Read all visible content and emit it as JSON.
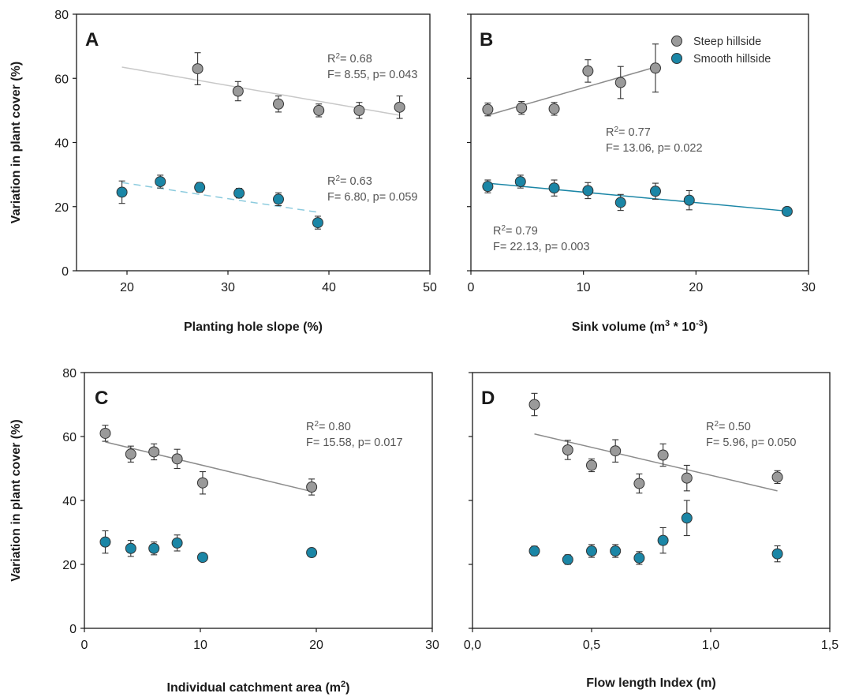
{
  "chart_data": [
    {
      "type": "scatter",
      "panel": "A",
      "xlabel": "Planting hole slope (%)",
      "ylabel": "Variation in plant cover (%)",
      "xlim": [
        15,
        50
      ],
      "ylim": [
        0,
        80
      ],
      "x_ticks": [
        "20",
        "30",
        "40",
        "50"
      ],
      "y_ticks": [
        "0",
        "20",
        "40",
        "60",
        "80"
      ],
      "series": [
        {
          "name": "Steep hillside",
          "color": "#9a9a9a",
          "points": [
            {
              "x": 27,
              "y": 63,
              "err": 5
            },
            {
              "x": 31,
              "y": 56,
              "err": 3
            },
            {
              "x": 35,
              "y": 52,
              "err": 2.5
            },
            {
              "x": 39,
              "y": 50,
              "err": 2
            },
            {
              "x": 43,
              "y": 50,
              "err": 2.5
            },
            {
              "x": 47,
              "y": 51,
              "err": 3.5
            }
          ],
          "fit": {
            "x": [
              19.5,
              47
            ],
            "y": [
              63.5,
              48.5
            ],
            "style": "solid",
            "color": "#c8c8c8"
          },
          "annotation": {
            "r2_prefix": "R",
            "r2_sup": "2",
            "r2_rest": "= 0.68",
            "stats": "F= 8.55,  p= 0.043"
          }
        },
        {
          "name": "Smooth hillside",
          "color": "#1b86a6",
          "points": [
            {
              "x": 19.5,
              "y": 24.5,
              "err": 3.5
            },
            {
              "x": 23.3,
              "y": 27.8,
              "err": 2
            },
            {
              "x": 27.2,
              "y": 26,
              "err": 1.5
            },
            {
              "x": 31.1,
              "y": 24.2,
              "err": 1.5
            },
            {
              "x": 35,
              "y": 22.3,
              "err": 2
            },
            {
              "x": 38.9,
              "y": 15,
              "err": 2
            }
          ],
          "fit": {
            "x": [
              19.5,
              39
            ],
            "y": [
              27.5,
              18.2
            ],
            "style": "dashed",
            "color": "#8ccbde"
          },
          "annotation": {
            "r2_prefix": "R",
            "r2_sup": "2",
            "r2_rest": "= 0.63",
            "stats": "F= 6.80,  p= 0.059"
          }
        }
      ]
    },
    {
      "type": "scatter",
      "panel": "B",
      "xlabel_main": "Sink volume (m",
      "xlabel_sup1": "3",
      "xlabel_mid": " * 10",
      "xlabel_sup2": "-3",
      "xlabel_end": ")",
      "xlim": [
        0,
        30
      ],
      "ylim": [
        0,
        80
      ],
      "x_ticks": [
        "0",
        "10",
        "20",
        "30"
      ],
      "legend": {
        "position": "top-right",
        "items": [
          {
            "label": "Steep hillside",
            "color": "#9a9a9a"
          },
          {
            "label": "Smooth hillside",
            "color": "#1b86a6"
          }
        ]
      },
      "series": [
        {
          "name": "Steep hillside",
          "color": "#9a9a9a",
          "points": [
            {
              "x": 1.5,
              "y": 50.3,
              "err": 2
            },
            {
              "x": 4.5,
              "y": 50.8,
              "err": 2
            },
            {
              "x": 7.4,
              "y": 50.5,
              "err": 2
            },
            {
              "x": 10.4,
              "y": 62.3,
              "err": 3.5
            },
            {
              "x": 13.3,
              "y": 58.7,
              "err": 5
            },
            {
              "x": 16.4,
              "y": 63.2,
              "err": 7.5
            }
          ],
          "fit": {
            "x": [
              1.5,
              16.4
            ],
            "y": [
              48.5,
              63.5
            ],
            "style": "solid",
            "color": "#8c8c8c"
          },
          "annotation": {
            "r2_prefix": "R",
            "r2_sup": "2",
            "r2_rest": "= 0.77",
            "stats": "F= 13.06,  p= 0.022"
          }
        },
        {
          "name": "Smooth hillside",
          "color": "#1b86a6",
          "points": [
            {
              "x": 1.5,
              "y": 26.3,
              "err": 2
            },
            {
              "x": 4.4,
              "y": 27.8,
              "err": 2
            },
            {
              "x": 7.4,
              "y": 25.8,
              "err": 2.5
            },
            {
              "x": 10.4,
              "y": 25,
              "err": 2.5
            },
            {
              "x": 13.3,
              "y": 21.3,
              "err": 2.5
            },
            {
              "x": 16.4,
              "y": 24.8,
              "err": 2.5
            },
            {
              "x": 19.4,
              "y": 22,
              "err": 3
            },
            {
              "x": 28.1,
              "y": 18.5,
              "err": 0.5
            }
          ],
          "fit": {
            "x": [
              1.5,
              28.1
            ],
            "y": [
              27.3,
              18.6
            ],
            "style": "solid",
            "color": "#1b86a6"
          },
          "annotation": {
            "r2_prefix": "R",
            "r2_sup": "2",
            "r2_rest": "= 0.79",
            "stats": "F= 22.13,  p= 0.003"
          }
        }
      ]
    },
    {
      "type": "scatter",
      "panel": "C",
      "xlabel_main": "Individual catchment area (m",
      "xlabel_sup1": "2",
      "xlabel_end": ")",
      "ylabel": "Variation in plant cover (%)",
      "xlim": [
        0,
        30
      ],
      "ylim": [
        0,
        80
      ],
      "x_ticks": [
        "0",
        "10",
        "20",
        "30"
      ],
      "y_ticks": [
        "0",
        "20",
        "40",
        "60",
        "80"
      ],
      "series": [
        {
          "name": "Steep hillside",
          "color": "#9a9a9a",
          "points": [
            {
              "x": 1.8,
              "y": 61,
              "err": 2.5
            },
            {
              "x": 4,
              "y": 54.5,
              "err": 2.5
            },
            {
              "x": 6,
              "y": 55.2,
              "err": 2.5
            },
            {
              "x": 8,
              "y": 53,
              "err": 3
            },
            {
              "x": 10.2,
              "y": 45.5,
              "err": 3.5
            },
            {
              "x": 19.6,
              "y": 44.2,
              "err": 2.5
            }
          ],
          "fit": {
            "x": [
              1.8,
              19.6
            ],
            "y": [
              58.3,
              42.8
            ],
            "style": "solid",
            "color": "#8c8c8c"
          },
          "annotation": {
            "r2_prefix": "R",
            "r2_sup": "2",
            "r2_rest": "= 0.80",
            "stats": "F= 15.58,  p= 0.017"
          }
        },
        {
          "name": "Smooth hillside",
          "color": "#1b86a6",
          "points": [
            {
              "x": 1.8,
              "y": 27,
              "err": 3.5
            },
            {
              "x": 4,
              "y": 25,
              "err": 2.5
            },
            {
              "x": 6,
              "y": 25,
              "err": 2
            },
            {
              "x": 8,
              "y": 26.7,
              "err": 2.5
            },
            {
              "x": 10.2,
              "y": 22.2,
              "err": 1
            },
            {
              "x": 19.6,
              "y": 23.7,
              "err": 1
            }
          ]
        }
      ]
    },
    {
      "type": "scatter",
      "panel": "D",
      "xlabel": "Flow length Index (m)",
      "xlim": [
        0,
        1.5
      ],
      "ylim": [
        0,
        80
      ],
      "x_ticks": [
        "0,0",
        "0,5",
        "1,0",
        "1,5"
      ],
      "series": [
        {
          "name": "Steep hillside",
          "color": "#9a9a9a",
          "points": [
            {
              "x": 0.26,
              "y": 70,
              "err": 3.5
            },
            {
              "x": 0.4,
              "y": 55.8,
              "err": 3
            },
            {
              "x": 0.5,
              "y": 51,
              "err": 2
            },
            {
              "x": 0.6,
              "y": 55.5,
              "err": 3.5
            },
            {
              "x": 0.7,
              "y": 45.3,
              "err": 3
            },
            {
              "x": 0.8,
              "y": 54.2,
              "err": 3.5
            },
            {
              "x": 0.9,
              "y": 47,
              "err": 4
            },
            {
              "x": 1.28,
              "y": 47.3,
              "err": 2
            }
          ],
          "fit": {
            "x": [
              0.26,
              1.28
            ],
            "y": [
              60.8,
              43
            ],
            "style": "solid",
            "color": "#8c8c8c"
          },
          "annotation": {
            "r2_prefix": "R",
            "r2_sup": "2",
            "r2_rest": "= 0.50",
            "stats": "F= 5.96,  p= 0.050"
          }
        },
        {
          "name": "Smooth hillside",
          "color": "#1b86a6",
          "points": [
            {
              "x": 0.26,
              "y": 24.2,
              "err": 1.5
            },
            {
              "x": 0.4,
              "y": 21.5,
              "err": 1.5
            },
            {
              "x": 0.5,
              "y": 24.2,
              "err": 2
            },
            {
              "x": 0.6,
              "y": 24.2,
              "err": 2
            },
            {
              "x": 0.7,
              "y": 22,
              "err": 2
            },
            {
              "x": 0.8,
              "y": 27.5,
              "err": 4
            },
            {
              "x": 0.9,
              "y": 34.5,
              "err": 5.5
            },
            {
              "x": 1.28,
              "y": 23.3,
              "err": 2.5
            }
          ]
        }
      ]
    }
  ]
}
